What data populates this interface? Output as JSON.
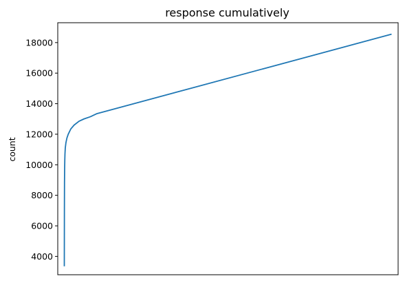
{
  "chart_data": {
    "type": "line",
    "title": "response cumulatively",
    "xlabel": "",
    "ylabel": "count",
    "x_ticks_shown": false,
    "xlim": [
      -20,
      1020
    ],
    "ylim": [
      2800,
      19300
    ],
    "yticks": [
      4000,
      6000,
      8000,
      10000,
      12000,
      14000,
      16000,
      18000
    ],
    "ytick_labels": [
      "4000",
      "6000",
      "8000",
      "10000",
      "12000",
      "14000",
      "16000",
      "18000"
    ],
    "grid": false,
    "legend": "none",
    "series": [
      {
        "color": "#1f77b4",
        "x": [
          0,
          0.3,
          0.6,
          1,
          1.5,
          2,
          3,
          5,
          8,
          12,
          20,
          30,
          45,
          60,
          80,
          100,
          1000
        ],
        "y": [
          3350,
          7000,
          8800,
          9700,
          10300,
          10700,
          11100,
          11450,
          11750,
          12000,
          12350,
          12600,
          12850,
          13000,
          13150,
          13350,
          18550
        ]
      }
    ]
  }
}
